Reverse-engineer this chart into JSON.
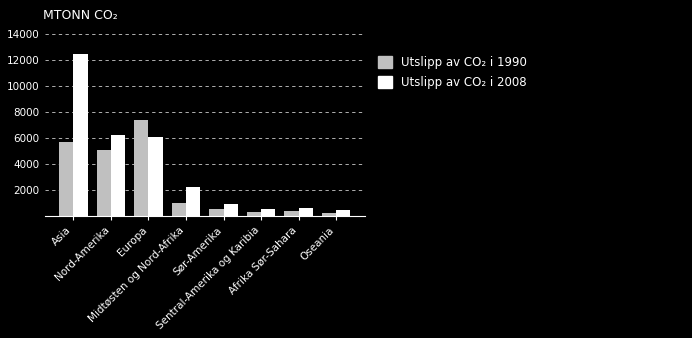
{
  "categories": [
    "Asia",
    "Nord-Amerika",
    "Europa",
    "Midtøsten og Nord-Afrika",
    "Sør-Amerika",
    "Sentral-Amerika og Karibia",
    "Afrika Sør-Sahara",
    "Oseania"
  ],
  "values_1990": [
    5700,
    5100,
    7400,
    1000,
    500,
    300,
    350,
    250
  ],
  "values_2008": [
    12500,
    6200,
    6100,
    2200,
    900,
    550,
    600,
    450
  ],
  "color_1990": "#c0c0c0",
  "color_2008": "#ffffff",
  "ylabel": "MTONN CO₂",
  "ylim": [
    0,
    14500
  ],
  "yticks": [
    0,
    2000,
    4000,
    6000,
    8000,
    10000,
    12000,
    14000
  ],
  "legend_1990": "Utslipp av CO₂ i 1990",
  "legend_2008": "Utslipp av CO₂ i 2008",
  "background_color": "#000000",
  "bar_width": 0.38,
  "text_color": "#ffffff",
  "tick_fontsize": 7.5,
  "ylabel_fontsize": 9,
  "legend_fontsize": 8.5
}
